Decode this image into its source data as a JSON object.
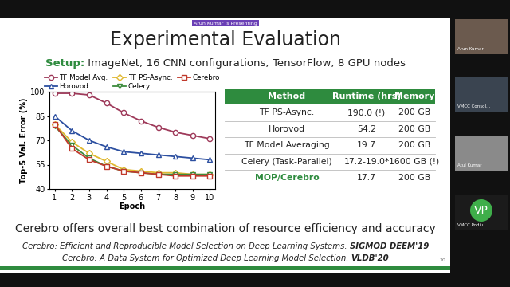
{
  "slide": {
    "badge": "Arun Kumar Is Presenting",
    "title": "Experimental Evaluation",
    "setup_label": "Setup:",
    "setup_text": " ImageNet; 16 CNN configurations; TensorFlow; 8 GPU nodes",
    "conclusion": "Cerebro offers overall best combination of resource efficiency and accuracy",
    "citations": [
      {
        "text": "Cerebro: Efficient and Reproducible Model Selection on Deep Learning Systems. ",
        "venue": "SIGMOD DEEM'19"
      },
      {
        "text": "Cerebro: A Data System for Optimized Deep Learning Model Selection. ",
        "venue": "VLDB'20"
      }
    ],
    "page": "20"
  },
  "chart_data": {
    "type": "line",
    "x_label": "Epoch",
    "y_label": "Top-5 Val. Error (%)",
    "x": [
      1,
      2,
      3,
      4,
      5,
      6,
      7,
      8,
      9,
      10
    ],
    "xlim": [
      0.7,
      10.3
    ],
    "xticks": [
      1,
      2,
      3,
      4,
      5,
      6,
      7,
      8,
      9,
      10
    ],
    "ylim": [
      40,
      100
    ],
    "yticks": [
      40,
      55,
      70,
      85,
      100
    ],
    "grid": false,
    "legend": "upper center",
    "series": [
      {
        "name": "TF Model Avg.",
        "color": "#9e3a5a",
        "marker": "circle",
        "values": [
          99,
          99,
          98,
          93,
          87,
          82,
          78,
          75,
          73,
          71
        ]
      },
      {
        "name": "Horovod",
        "color": "#2c4fa0",
        "marker": "triangle_up",
        "values": [
          85,
          76,
          70,
          66,
          63,
          62,
          61,
          60,
          59,
          58
        ]
      },
      {
        "name": "TF PS-Async.",
        "color": "#e0b830",
        "marker": "diamond",
        "values": [
          80,
          69,
          62,
          57,
          52,
          51,
          50,
          50,
          49,
          49
        ]
      },
      {
        "name": "Celery",
        "color": "#3d8b3d",
        "marker": "triangle_down",
        "values": [
          79,
          67,
          59,
          54,
          51,
          50,
          49,
          49,
          49,
          49
        ]
      },
      {
        "name": "Cerebro",
        "color": "#c0392b",
        "marker": "square",
        "values": [
          80,
          65,
          58,
          54,
          51,
          50,
          49,
          48,
          48,
          48
        ]
      }
    ]
  },
  "table": {
    "header": [
      "Method",
      "Runtime (hrs)",
      "Memory"
    ],
    "rows": [
      [
        "TF PS-Async.",
        "190.0 (!)",
        "200 GB"
      ],
      [
        "Horovod",
        "54.2",
        "200 GB"
      ],
      [
        "TF Model Averaging",
        "19.7",
        "200 GB"
      ],
      [
        "Celery (Task-Parallel)",
        "17.2-19.0*",
        "1600 GB (!)"
      ],
      [
        "MOP/Cerebro",
        "17.7",
        "200 GB"
      ]
    ]
  },
  "video_panel": {
    "participants": [
      "Arun Kumar",
      "VMCC Consol...",
      "Atul Kumar",
      "VMCC Podiu..."
    ],
    "initials": "VP"
  }
}
